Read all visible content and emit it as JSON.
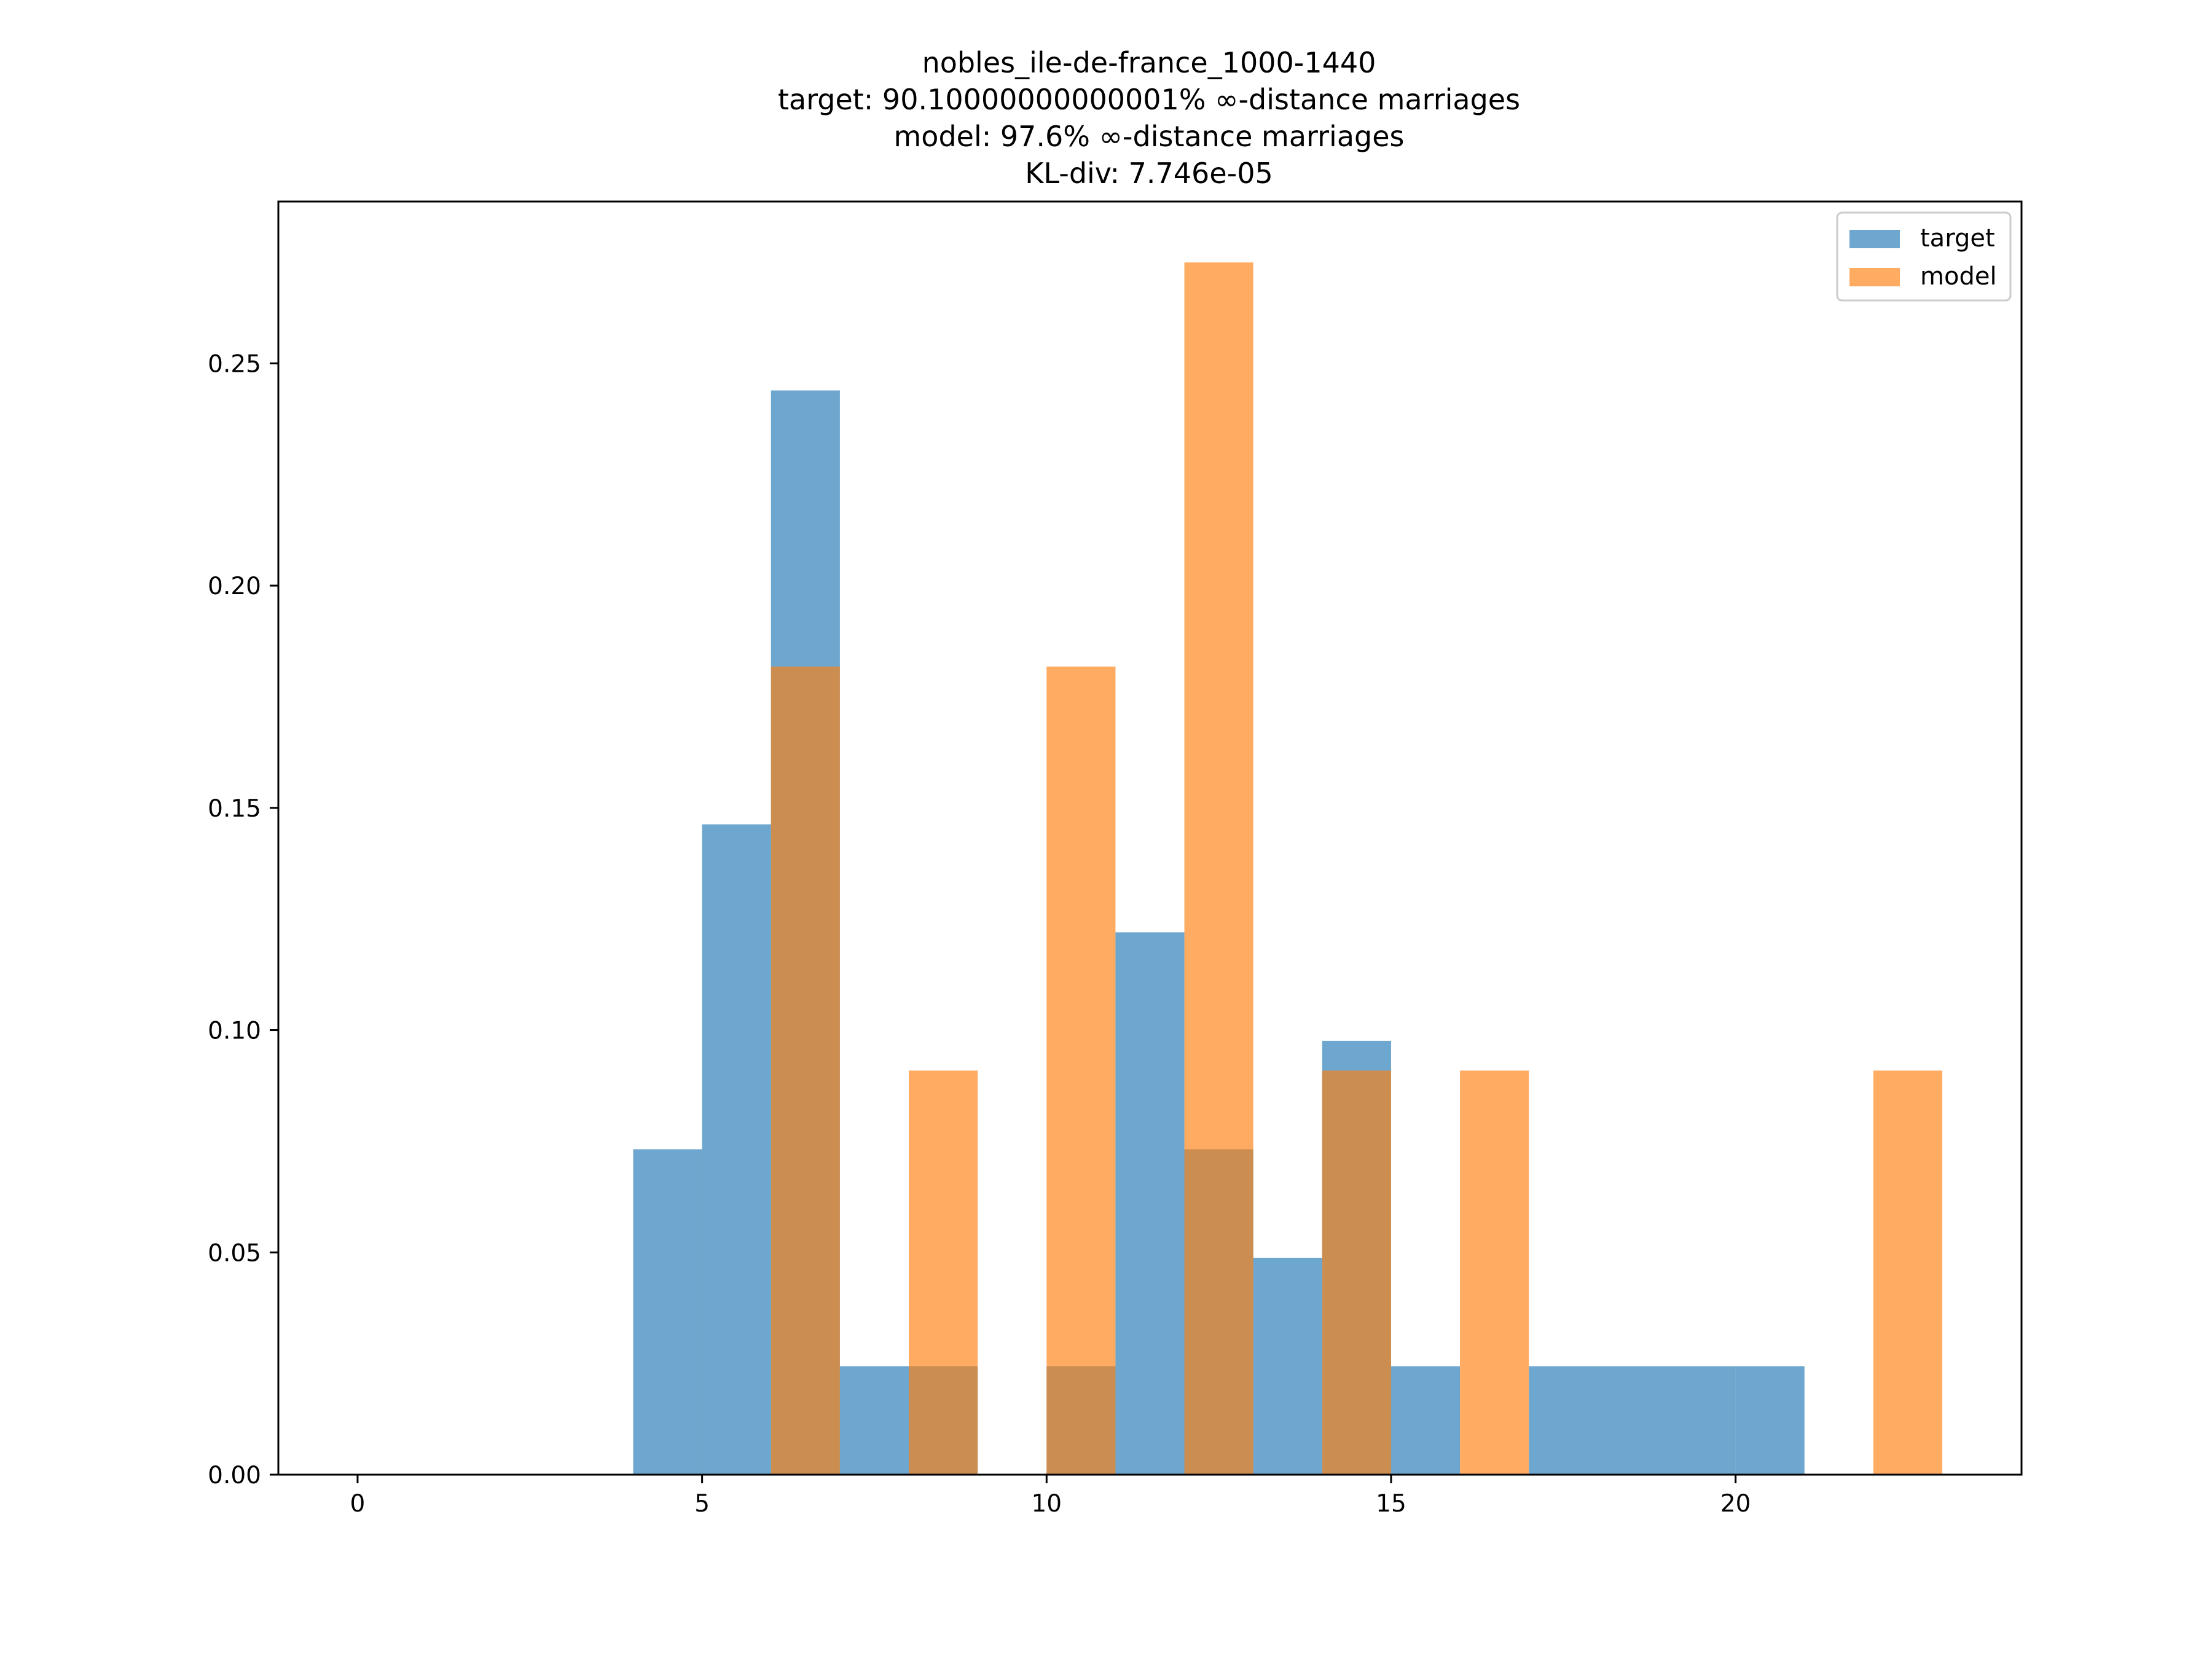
{
  "chart_data": {
    "type": "bar",
    "title_lines": [
      "nobles_ile-de-france_1000-1440",
      "target: 90.10000000000001% ∞-distance marriages",
      "model: 97.6% ∞-distance marriages",
      "KL-div: 7.746e-05"
    ],
    "xlabel": "",
    "ylabel": "",
    "xlim": [
      -1.15,
      24.15
    ],
    "ylim": [
      0,
      0.2864
    ],
    "x_ticks": [
      0,
      5,
      10,
      15,
      20
    ],
    "x_tick_labels": [
      "0",
      "5",
      "10",
      "15",
      "20"
    ],
    "y_ticks": [
      0.0,
      0.05,
      0.1,
      0.15,
      0.2,
      0.25
    ],
    "y_tick_labels": [
      "0.00",
      "0.05",
      "0.10",
      "0.15",
      "0.20",
      "0.25"
    ],
    "bin_width": 1,
    "grid": false,
    "legend_position": "top-right",
    "series": [
      {
        "name": "target",
        "color": "#1f77b4",
        "alpha": 0.65,
        "bins": [
          {
            "x": 4,
            "value": 0.0732
          },
          {
            "x": 5,
            "value": 0.1463
          },
          {
            "x": 6,
            "value": 0.2439
          },
          {
            "x": 7,
            "value": 0.0244
          },
          {
            "x": 8,
            "value": 0.0244
          },
          {
            "x": 10,
            "value": 0.0244
          },
          {
            "x": 11,
            "value": 0.122
          },
          {
            "x": 12,
            "value": 0.0732
          },
          {
            "x": 13,
            "value": 0.0488
          },
          {
            "x": 14,
            "value": 0.0976
          },
          {
            "x": 15,
            "value": 0.0244
          },
          {
            "x": 17,
            "value": 0.0244
          },
          {
            "x": 18,
            "value": 0.0244
          },
          {
            "x": 19,
            "value": 0.0244
          },
          {
            "x": 20,
            "value": 0.0244
          }
        ]
      },
      {
        "name": "model",
        "color": "#ff7f0e",
        "alpha": 0.65,
        "bins": [
          {
            "x": 6,
            "value": 0.1818
          },
          {
            "x": 8,
            "value": 0.0909
          },
          {
            "x": 10,
            "value": 0.1818
          },
          {
            "x": 12,
            "value": 0.2727
          },
          {
            "x": 14,
            "value": 0.0909
          },
          {
            "x": 16,
            "value": 0.0909
          },
          {
            "x": 22,
            "value": 0.0909
          }
        ]
      }
    ]
  }
}
